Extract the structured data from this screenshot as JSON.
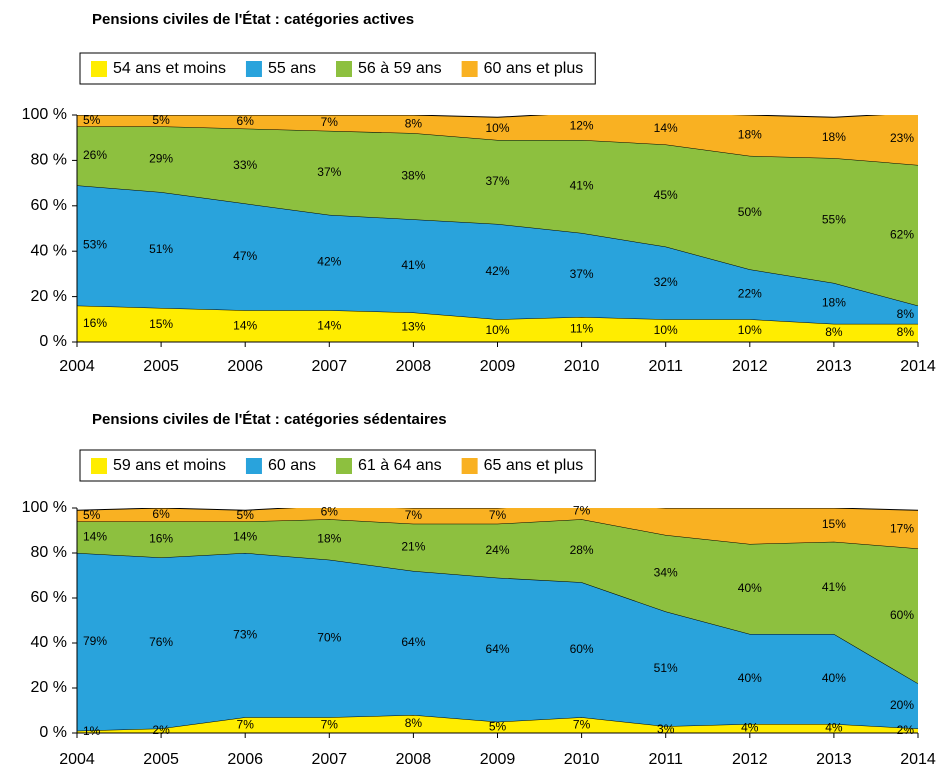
{
  "chart_data": [
    {
      "type": "stacked_area",
      "title": "Pensions civiles de l'État : catégories actives",
      "categories": [
        "2004",
        "2005",
        "2006",
        "2007",
        "2008",
        "2009",
        "2010",
        "2011",
        "2012",
        "2013",
        "2014"
      ],
      "series": [
        {
          "name": "54 ans et moins",
          "color": "#ffed00",
          "values": [
            16,
            15,
            14,
            14,
            13,
            10,
            11,
            10,
            10,
            8,
            8
          ],
          "value_labels": [
            "16%",
            "15%",
            "14%",
            "14%",
            "13%",
            "10%",
            "11%",
            "10%",
            "10%",
            "8%",
            "8%"
          ]
        },
        {
          "name": "55 ans",
          "color": "#29a3dc",
          "values": [
            53,
            51,
            47,
            42,
            41,
            42,
            37,
            32,
            22,
            18,
            8
          ],
          "value_labels": [
            "53%",
            "51%",
            "47%",
            "42%",
            "41%",
            "42%",
            "37%",
            "32%",
            "22%",
            "18%",
            "8%"
          ]
        },
        {
          "name": "56 à 59 ans",
          "color": "#8dc03f",
          "values": [
            26,
            29,
            33,
            37,
            38,
            37,
            41,
            45,
            50,
            55,
            62
          ],
          "value_labels": [
            "26%",
            "29%",
            "33%",
            "37%",
            "38%",
            "37%",
            "41%",
            "45%",
            "50%",
            "55%",
            "62%"
          ]
        },
        {
          "name": "60 ans et plus",
          "color": "#f9b122",
          "values": [
            5,
            5,
            6,
            7,
            8,
            10,
            12,
            14,
            18,
            18,
            23
          ],
          "value_labels": [
            "5%",
            "5%",
            "6%",
            "7%",
            "8%",
            "10%",
            "12%",
            "14%",
            "18%",
            "18%",
            "23%"
          ]
        }
      ],
      "ylim": [
        0,
        100
      ],
      "yticks": [
        {
          "value": 0,
          "label": "0 %"
        },
        {
          "value": 20,
          "label": "20 %"
        },
        {
          "value": 40,
          "label": "40 %"
        },
        {
          "value": 60,
          "label": "60 %"
        },
        {
          "value": 80,
          "label": "80 %"
        },
        {
          "value": 100,
          "label": "100 %"
        }
      ]
    },
    {
      "type": "stacked_area",
      "title": "Pensions civiles de l'État : catégories sédentaires",
      "categories": [
        "2004",
        "2005",
        "2006",
        "2007",
        "2008",
        "2009",
        "2010",
        "2011",
        "2012",
        "2013",
        "2014"
      ],
      "series": [
        {
          "name": "59 ans et moins",
          "color": "#ffed00",
          "values": [
            1,
            2,
            7,
            7,
            8,
            5,
            7,
            3,
            4,
            4,
            2
          ],
          "value_labels": [
            "1%",
            "2%",
            "7%",
            "7%",
            "8%",
            "5%",
            "7%",
            "3%",
            "4%",
            "4%",
            "2%"
          ]
        },
        {
          "name": "60 ans",
          "color": "#29a3dc",
          "values": [
            79,
            76,
            73,
            70,
            64,
            64,
            60,
            51,
            40,
            40,
            20
          ],
          "value_labels": [
            "79%",
            "76%",
            "73%",
            "70%",
            "64%",
            "64%",
            "60%",
            "51%",
            "40%",
            "40%",
            "20%"
          ]
        },
        {
          "name": "61 à 64 ans",
          "color": "#8dc03f",
          "values": [
            14,
            16,
            14,
            18,
            21,
            24,
            28,
            34,
            40,
            41,
            60
          ],
          "value_labels": [
            "14%",
            "16%",
            "14%",
            "18%",
            "21%",
            "24%",
            "28%",
            "34%",
            "40%",
            "41%",
            "60%"
          ]
        },
        {
          "name": "65 ans et plus",
          "color": "#f9b122",
          "values": [
            5,
            6,
            5,
            6,
            7,
            7,
            7,
            12,
            16,
            15,
            17
          ],
          "value_labels": [
            "5%",
            "6%",
            "5%",
            "6%",
            "7%",
            "7%",
            "7%",
            null,
            null,
            "15%",
            "17%"
          ]
        }
      ],
      "ylim": [
        0,
        100
      ],
      "yticks": [
        {
          "value": 0,
          "label": "0 %"
        },
        {
          "value": 20,
          "label": "20 %"
        },
        {
          "value": 40,
          "label": "40 %"
        },
        {
          "value": 60,
          "label": "60 %"
        },
        {
          "value": 80,
          "label": "80 %"
        },
        {
          "value": 100,
          "label": "100 %"
        }
      ]
    }
  ]
}
